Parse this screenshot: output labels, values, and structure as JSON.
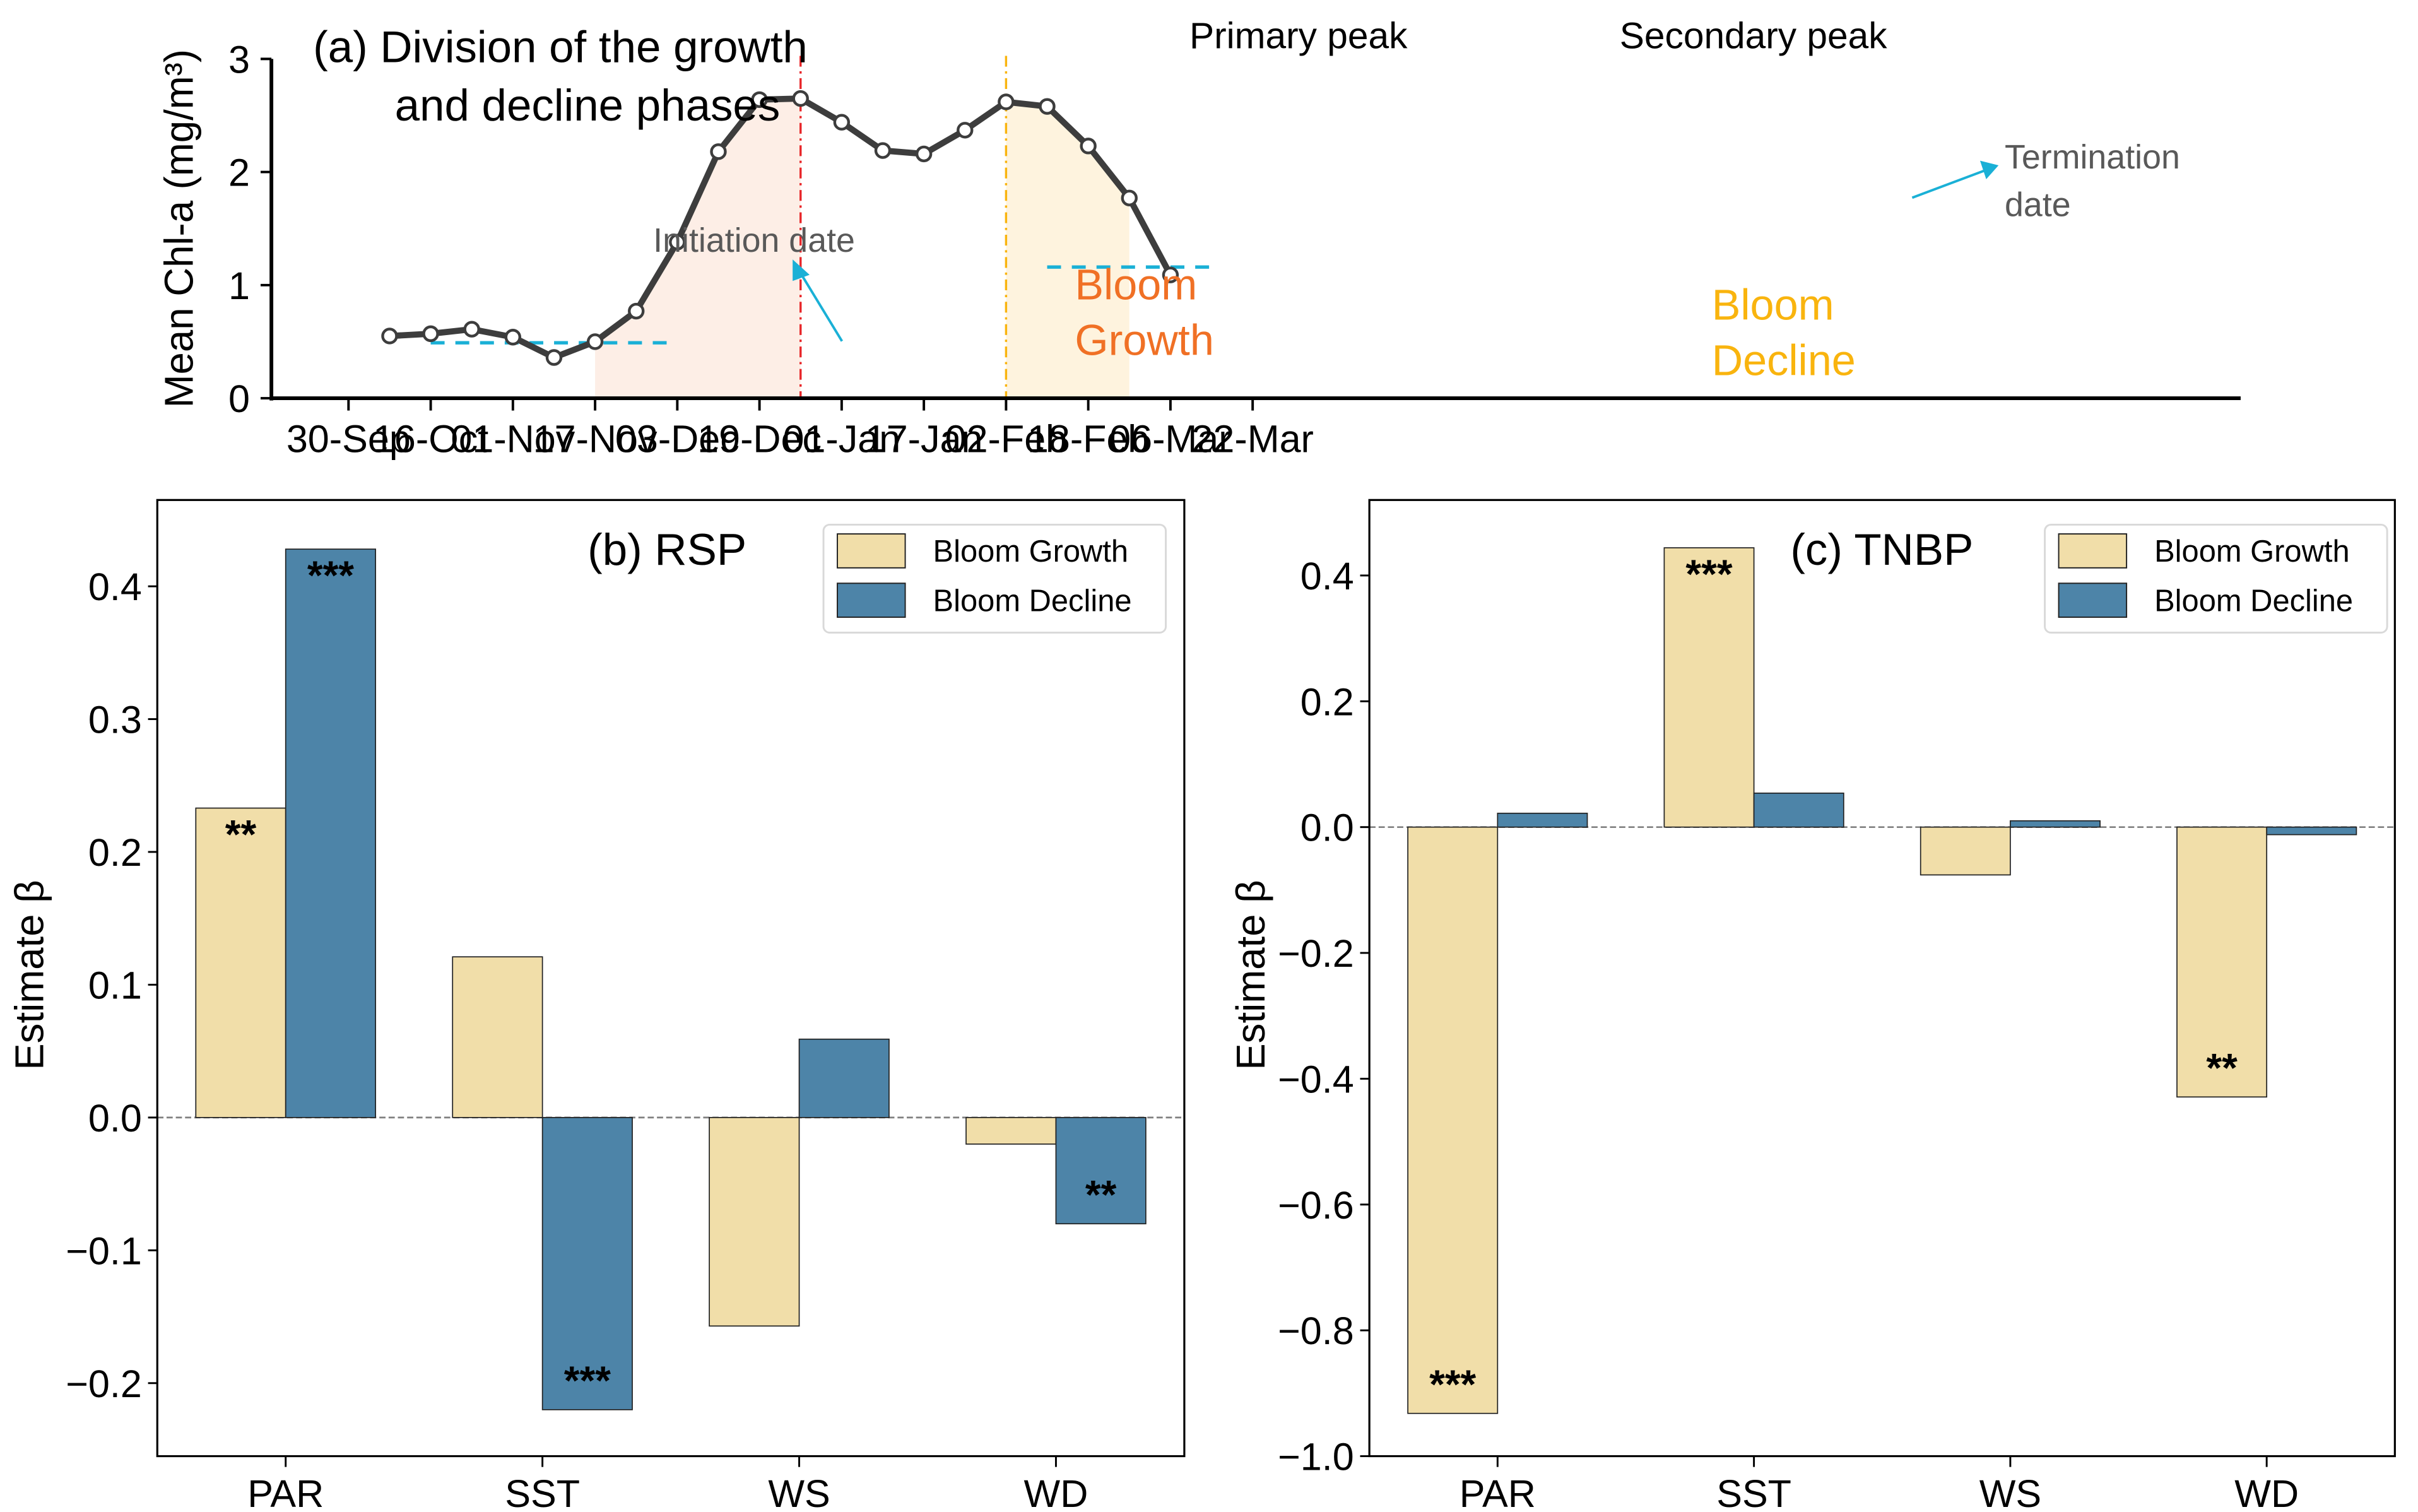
{
  "chart_data": [
    {
      "id": "a",
      "type": "line",
      "title": "(a) Division of the growth and decline phases",
      "title_lines": [
        "(a) Division of the growth",
        "and decline phases"
      ],
      "xlabel": "",
      "ylabel": "Mean Chl-a (mg/m³)",
      "ylim": [
        0,
        3
      ],
      "yticks": [
        0,
        1,
        2,
        3
      ],
      "xtick_labels": [
        "30-Sep",
        "16-Oct",
        "01-Nov",
        "17-Nov",
        "03-Dec",
        "19-Dec",
        "01-Jan",
        "17-Jan",
        "02-Feb",
        "18-Feb",
        "06-Mar",
        "22-Mar"
      ],
      "x_index_unit": "8-day composite (tick every 2 points)",
      "x_index": [
        1,
        2,
        3,
        4,
        5,
        6,
        7,
        8,
        9,
        10,
        11,
        12,
        13,
        14,
        15,
        16,
        17,
        18,
        19,
        20
      ],
      "values": [
        0.55,
        0.57,
        0.61,
        0.54,
        0.36,
        0.5,
        0.77,
        1.38,
        2.18,
        2.64,
        2.65,
        2.44,
        2.19,
        2.16,
        2.37,
        2.62,
        2.58,
        2.23,
        1.77,
        1.09
      ],
      "line_color": "#3d3d3d",
      "thresholds": [
        {
          "name": "initiation-threshold",
          "value": 0.49,
          "x_from": 2,
          "x_to": 8,
          "color": "#1ab0d6"
        },
        {
          "name": "termination-threshold",
          "value": 1.16,
          "x_from": 17,
          "x_to": 21.2,
          "color": "#1ab0d6"
        }
      ],
      "shaded_regions": [
        {
          "name": "bloom-growth-region",
          "label_lines": [
            "Bloom",
            "Growth"
          ],
          "x_from": 6,
          "x_to": 11,
          "fill": "#fdeee6",
          "text_color": "#f07025"
        },
        {
          "name": "bloom-decline-region",
          "label_lines": [
            "Bloom",
            "Decline"
          ],
          "x_from": 16,
          "x_to": 19,
          "fill": "#fef3de",
          "text_color": "#f9b40e"
        }
      ],
      "vlines": [
        {
          "name": "primary-peak-line",
          "x": 11,
          "label": "Primary peak",
          "color": "#e8262a"
        },
        {
          "name": "secondary-peak-line",
          "x": 16,
          "label": "Secondary peak",
          "color": "#f9b40e"
        }
      ],
      "annotations": [
        {
          "name": "initiation-date-label",
          "text": "Initiation date",
          "x": 6
        },
        {
          "name": "termination-date-label",
          "text_lines": [
            "Termination",
            "date"
          ],
          "x": 19
        }
      ],
      "grid": false
    },
    {
      "id": "b",
      "type": "bar",
      "title": "(b) RSP",
      "ylabel": "Estimate β",
      "ylim": [
        -0.255,
        0.465
      ],
      "yticks": [
        -0.2,
        -0.1,
        0.0,
        0.1,
        0.2,
        0.3,
        0.4
      ],
      "ytick_labels": [
        "−0.2",
        "−0.1",
        "0.0",
        "0.1",
        "0.2",
        "0.3",
        "0.4"
      ],
      "categories": [
        "PAR",
        "SST",
        "WS",
        "WD"
      ],
      "series": [
        {
          "name": "Bloom Growth",
          "color": "#f1dea9",
          "values": [
            0.233,
            0.121,
            -0.157,
            -0.02
          ],
          "significance": [
            "**",
            "",
            "",
            ""
          ]
        },
        {
          "name": "Bloom Decline",
          "color": "#4d84a8",
          "values": [
            0.428,
            -0.22,
            0.059,
            -0.08
          ],
          "significance": [
            "***",
            "***",
            "",
            "**"
          ]
        }
      ],
      "legend": "top-right",
      "grid": false
    },
    {
      "id": "c",
      "type": "bar",
      "title": "(c) TNBP",
      "ylabel": "Estimate β",
      "ylim": [
        -1.0,
        0.52
      ],
      "yticks": [
        -1.0,
        -0.8,
        -0.6,
        -0.4,
        -0.2,
        0.0,
        0.2,
        0.4
      ],
      "ytick_labels": [
        "−1.0",
        "−0.8",
        "−0.6",
        "−0.4",
        "−0.2",
        "0.0",
        "0.2",
        "0.4"
      ],
      "categories": [
        "PAR",
        "SST",
        "WS",
        "WD"
      ],
      "series": [
        {
          "name": "Bloom Growth",
          "color": "#f1dea9",
          "values": [
            -0.932,
            0.444,
            -0.076,
            -0.429
          ],
          "significance": [
            "***",
            "***",
            "",
            "**"
          ]
        },
        {
          "name": "Bloom Decline",
          "color": "#4d84a8",
          "values": [
            0.022,
            0.054,
            0.01,
            -0.012
          ],
          "significance": [
            "",
            "",
            "",
            ""
          ]
        }
      ],
      "legend": "top-right",
      "grid": false
    }
  ]
}
